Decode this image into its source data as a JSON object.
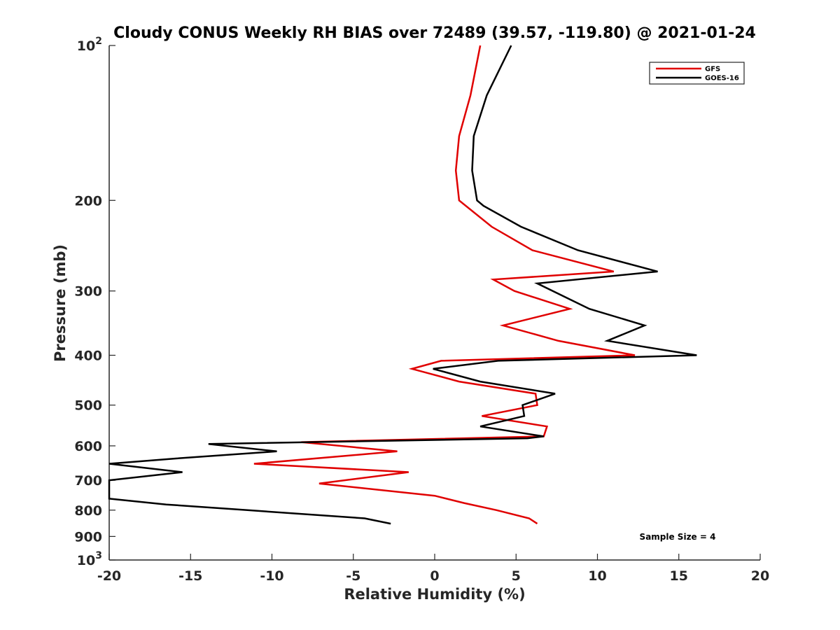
{
  "chart_data": {
    "type": "line",
    "title": "Cloudy CONUS Weekly RH BIAS over 72489 (39.57, -119.80) @ 2021-01-24",
    "xlabel": "Relative Humidity (%)",
    "ylabel": "Pressure (mb)",
    "xlim": [
      -20,
      20
    ],
    "ylim": [
      100,
      1000
    ],
    "y_scale": "log",
    "y_reversed": true,
    "x_ticks": [
      -20,
      -15,
      -10,
      -5,
      0,
      5,
      10,
      15,
      20
    ],
    "x_tick_labels": [
      "-20",
      "-15",
      "-10",
      "-5",
      "0",
      "5",
      "10",
      "15",
      "20"
    ],
    "y_ticks": [
      100,
      200,
      300,
      400,
      500,
      600,
      700,
      800,
      900,
      1000
    ],
    "y_tick_labels": [
      {
        "base": "10",
        "exp": "2"
      },
      {
        "base": "200"
      },
      {
        "base": "300"
      },
      {
        "base": "400"
      },
      {
        "base": "500"
      },
      {
        "base": "600"
      },
      {
        "base": "700"
      },
      {
        "base": "800"
      },
      {
        "base": "900"
      },
      {
        "base": "10",
        "exp": "3"
      }
    ],
    "grid": false,
    "legend_position": "top-right",
    "annotation": "Sample Size = 4",
    "series": [
      {
        "name": "GFS",
        "color": "#e00000",
        "points": [
          [
            2.8,
            100
          ],
          [
            2.2,
            125
          ],
          [
            1.5,
            150
          ],
          [
            1.3,
            175
          ],
          [
            1.5,
            200
          ],
          [
            3.5,
            225
          ],
          [
            6.0,
            250
          ],
          [
            11.0,
            275
          ],
          [
            3.6,
            285
          ],
          [
            4.9,
            300
          ],
          [
            8.3,
            325
          ],
          [
            4.2,
            350
          ],
          [
            7.6,
            375
          ],
          [
            12.3,
            400
          ],
          [
            0.4,
            410
          ],
          [
            -1.4,
            425
          ],
          [
            1.5,
            450
          ],
          [
            6.2,
            475
          ],
          [
            6.3,
            500
          ],
          [
            2.9,
            525
          ],
          [
            6.9,
            550
          ],
          [
            6.7,
            575
          ],
          [
            -8.2,
            590
          ],
          [
            -2.3,
            615
          ],
          [
            -11.1,
            650
          ],
          [
            -1.6,
            675
          ],
          [
            -7.1,
            710
          ],
          [
            0.0,
            750
          ],
          [
            1.8,
            775
          ],
          [
            3.8,
            800
          ],
          [
            5.8,
            830
          ],
          [
            6.3,
            850
          ]
        ]
      },
      {
        "name": "GOES-16",
        "color": "#000000",
        "points": [
          [
            4.7,
            100
          ],
          [
            3.2,
            125
          ],
          [
            2.4,
            150
          ],
          [
            2.3,
            175
          ],
          [
            2.6,
            200
          ],
          [
            3.0,
            205
          ],
          [
            5.3,
            225
          ],
          [
            8.8,
            250
          ],
          [
            13.7,
            275
          ],
          [
            6.3,
            290
          ],
          [
            9.5,
            325
          ],
          [
            12.9,
            350
          ],
          [
            10.6,
            375
          ],
          [
            16.1,
            400
          ],
          [
            3.9,
            410
          ],
          [
            -0.1,
            425
          ],
          [
            2.8,
            450
          ],
          [
            7.4,
            475
          ],
          [
            5.4,
            500
          ],
          [
            5.5,
            525
          ],
          [
            2.8,
            550
          ],
          [
            6.7,
            575
          ],
          [
            5.7,
            580
          ],
          [
            -13.9,
            595
          ],
          [
            -9.7,
            615
          ],
          [
            -15.9,
            635
          ],
          [
            -20.0,
            650
          ],
          [
            -15.5,
            675
          ],
          [
            -20.0,
            700
          ],
          [
            -20.0,
            760
          ],
          [
            -16.5,
            780
          ],
          [
            -11.5,
            800
          ],
          [
            -4.3,
            830
          ],
          [
            -2.7,
            850
          ]
        ]
      }
    ]
  }
}
